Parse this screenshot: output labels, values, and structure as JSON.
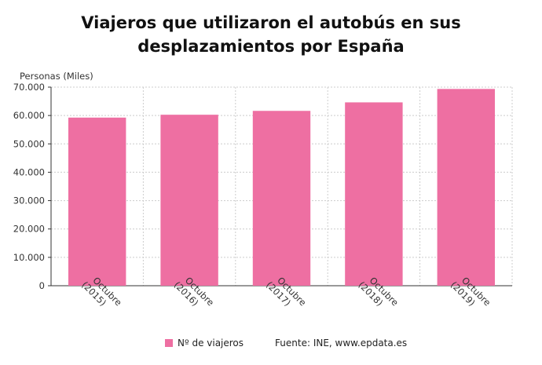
{
  "chart_data": {
    "type": "bar",
    "title": "Viajeros que utilizaron el autobús en sus desplazamientos por España",
    "ylabel": "Personas (Miles)",
    "xlabel": "",
    "categories": [
      "Octubre (2015)",
      "Octubre (2016)",
      "Octubre (2017)",
      "Octubre (2018)",
      "Octubre (2019)"
    ],
    "series": [
      {
        "name": "Nº de viajeros",
        "values": [
          59260,
          60270,
          61630,
          64630,
          69360
        ]
      }
    ],
    "ylim": [
      0,
      70000
    ],
    "yticks": [
      "0",
      "10.000",
      "20.000",
      "30.000",
      "40.000",
      "50.000",
      "60.000",
      "70.000"
    ],
    "grid": true,
    "legend": "bottom",
    "color": "#ee6fa2"
  },
  "source": "Fuente: INE, www.epdata.es"
}
